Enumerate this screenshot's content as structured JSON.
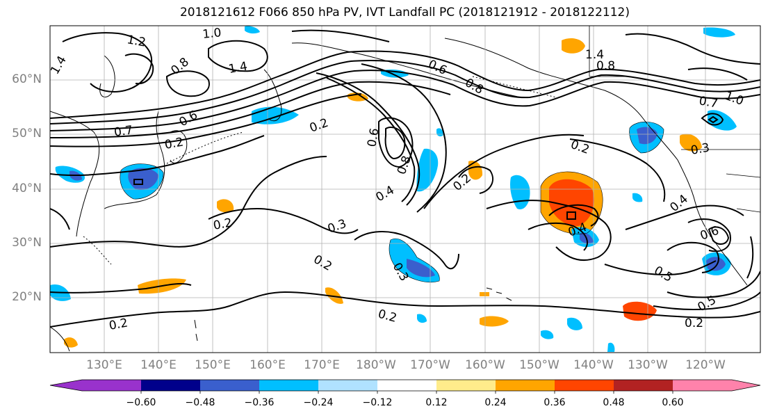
{
  "title": "2018121612 F066 850 hPa PV, IVT Landfall PC (2018121912 - 2018122112)",
  "lat_labels": [
    "60°N",
    "50°N",
    "40°N",
    "30°N",
    "20°N"
  ],
  "lon_labels": [
    "130°E",
    "140°E",
    "150°E",
    "160°E",
    "170°E",
    "180°W",
    "170°W",
    "160°W",
    "150°W",
    "140°W",
    "130°W",
    "120°W"
  ],
  "contour_labels": [
    "1.0",
    "1.2",
    "1.4",
    "0.8",
    "1.4",
    "0.6",
    "0.8",
    "0.7",
    "0.6",
    "0.2",
    "0.2",
    "0.6",
    "0.8",
    "0.4",
    "0.3",
    "0.2",
    "0.2",
    "0.2",
    "0.3",
    "0.2",
    "0.4",
    "0.2",
    "1.4",
    "0.8",
    "1.0",
    "0.7",
    "0.4",
    "0.6",
    "0.5",
    "0.5",
    "0.2",
    "0.3",
    "0.2"
  ],
  "colorbar": {
    "ticks": [
      "−0.60",
      "−0.48",
      "−0.36",
      "−0.24",
      "−0.12",
      "0.12",
      "0.24",
      "0.36",
      "0.48",
      "0.60"
    ],
    "colors": [
      "#9932CC",
      "#00008B",
      "#3A5FCD",
      "#00BFFF",
      "#B0E2FF",
      "#FFFFFF",
      "#FFEC8B",
      "#FFA500",
      "#FF4500",
      "#B22222",
      "#FF82AB"
    ]
  }
}
